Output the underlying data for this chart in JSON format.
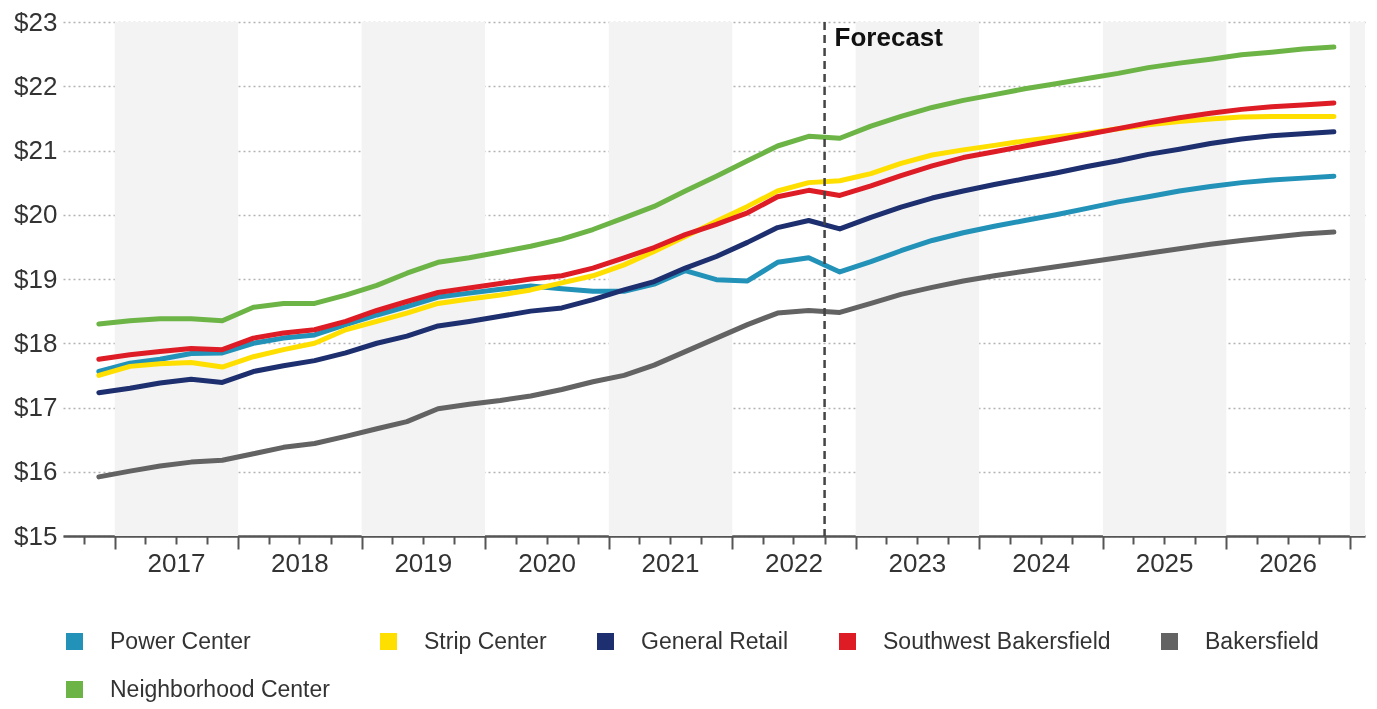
{
  "chart_data": {
    "type": "line",
    "x": [
      "2016-11-15",
      "2017-02-15",
      "2017-05-15",
      "2017-08-15",
      "2017-11-15",
      "2018-02-15",
      "2018-05-15",
      "2018-08-15",
      "2018-11-15",
      "2019-02-15",
      "2019-05-15",
      "2019-08-15",
      "2019-11-15",
      "2020-02-15",
      "2020-05-15",
      "2020-08-15",
      "2020-11-15",
      "2021-02-15",
      "2021-05-15",
      "2021-08-15",
      "2021-11-15",
      "2022-02-15",
      "2022-05-15",
      "2022-08-15",
      "2022-11-15",
      "2023-02-15",
      "2023-05-15",
      "2023-08-15",
      "2023-11-15",
      "2024-02-15",
      "2024-05-15",
      "2024-08-15",
      "2024-11-15",
      "2025-02-15",
      "2025-05-15",
      "2025-08-15",
      "2025-11-15",
      "2026-02-15",
      "2026-05-15",
      "2026-08-15",
      "2026-11-15"
    ],
    "series": [
      {
        "name": "Power Center",
        "color": "#2292b8",
        "values": [
          17.56,
          17.69,
          17.75,
          17.84,
          17.85,
          18.0,
          18.08,
          18.13,
          18.29,
          18.44,
          18.57,
          18.72,
          18.78,
          18.84,
          18.89,
          18.85,
          18.81,
          18.81,
          18.92,
          19.13,
          18.99,
          18.97,
          19.26,
          19.33,
          19.11,
          19.27,
          19.44,
          19.6,
          19.72,
          19.82,
          19.91,
          20.0,
          20.1,
          20.2,
          20.28,
          20.37,
          20.44,
          20.5,
          20.54,
          20.57,
          20.6
        ]
      },
      {
        "name": "Strip Center",
        "color": "#ffdf00",
        "values": [
          17.5,
          17.64,
          17.68,
          17.7,
          17.63,
          17.79,
          17.9,
          18.0,
          18.21,
          18.34,
          18.47,
          18.62,
          18.69,
          18.75,
          18.83,
          18.94,
          19.05,
          19.22,
          19.43,
          19.66,
          19.9,
          20.13,
          20.37,
          20.5,
          20.53,
          20.64,
          20.8,
          20.93,
          21.01,
          21.08,
          21.15,
          21.21,
          21.27,
          21.34,
          21.4,
          21.45,
          21.49,
          21.52,
          21.53,
          21.53,
          21.53
        ]
      },
      {
        "name": "General Retail",
        "color": "#1d2f6f",
        "values": [
          17.23,
          17.3,
          17.38,
          17.44,
          17.39,
          17.56,
          17.65,
          17.73,
          17.85,
          18.0,
          18.11,
          18.27,
          18.34,
          18.42,
          18.5,
          18.55,
          18.68,
          18.83,
          18.96,
          19.17,
          19.35,
          19.57,
          19.8,
          19.91,
          19.78,
          19.96,
          20.12,
          20.26,
          20.37,
          20.47,
          20.56,
          20.65,
          20.75,
          20.84,
          20.94,
          21.02,
          21.11,
          21.18,
          21.23,
          21.26,
          21.29
        ]
      },
      {
        "name": "Southwest Bakersfield",
        "color": "#dd1c25",
        "values": [
          17.75,
          17.82,
          17.87,
          17.92,
          17.9,
          18.08,
          18.16,
          18.21,
          18.34,
          18.51,
          18.65,
          18.79,
          18.86,
          18.93,
          19.0,
          19.05,
          19.17,
          19.33,
          19.49,
          19.69,
          19.85,
          20.03,
          20.28,
          20.38,
          20.3,
          20.45,
          20.61,
          20.76,
          20.89,
          20.98,
          21.07,
          21.16,
          21.25,
          21.34,
          21.43,
          21.51,
          21.58,
          21.64,
          21.68,
          21.71,
          21.74
        ]
      },
      {
        "name": "Bakersfield",
        "color": "#636363",
        "values": [
          15.92,
          16.01,
          16.09,
          16.15,
          16.18,
          16.28,
          16.38,
          16.44,
          16.55,
          16.67,
          16.78,
          16.98,
          17.05,
          17.11,
          17.18,
          17.28,
          17.4,
          17.5,
          17.66,
          17.87,
          18.08,
          18.29,
          18.47,
          18.51,
          18.48,
          18.62,
          18.76,
          18.87,
          18.97,
          19.05,
          19.12,
          19.19,
          19.26,
          19.33,
          19.4,
          19.47,
          19.54,
          19.6,
          19.65,
          19.7,
          19.73
        ]
      },
      {
        "name": "Neighborhood Center",
        "color": "#6db446",
        "values": [
          18.3,
          18.35,
          18.38,
          18.38,
          18.35,
          18.56,
          18.62,
          18.62,
          18.75,
          18.9,
          19.09,
          19.26,
          19.33,
          19.42,
          19.51,
          19.62,
          19.77,
          19.95,
          20.13,
          20.37,
          20.6,
          20.84,
          21.07,
          21.22,
          21.19,
          21.38,
          21.53,
          21.67,
          21.78,
          21.87,
          21.96,
          22.04,
          22.12,
          22.2,
          22.29,
          22.36,
          22.42,
          22.49,
          22.53,
          22.58,
          22.61
        ]
      }
    ],
    "xlim": [
      "2016-08-01",
      "2027-02-15"
    ],
    "xticks": [
      {
        "value": "2016-10-01",
        "label": null
      },
      {
        "value": "2017-01-01",
        "label": null
      },
      {
        "value": "2017-04-01",
        "label": null
      },
      {
        "value": "2017-07-01",
        "label": "2017"
      },
      {
        "value": "2017-10-01",
        "label": null
      },
      {
        "value": "2018-01-01",
        "label": null
      },
      {
        "value": "2018-04-01",
        "label": null
      },
      {
        "value": "2018-07-01",
        "label": "2018"
      },
      {
        "value": "2018-10-01",
        "label": null
      },
      {
        "value": "2019-01-01",
        "label": null
      },
      {
        "value": "2019-04-01",
        "label": null
      },
      {
        "value": "2019-07-01",
        "label": "2019"
      },
      {
        "value": "2019-10-01",
        "label": null
      },
      {
        "value": "2020-01-01",
        "label": null
      },
      {
        "value": "2020-04-01",
        "label": null
      },
      {
        "value": "2020-07-01",
        "label": "2020"
      },
      {
        "value": "2020-10-01",
        "label": null
      },
      {
        "value": "2021-01-01",
        "label": null
      },
      {
        "value": "2021-04-01",
        "label": null
      },
      {
        "value": "2021-07-01",
        "label": "2021"
      },
      {
        "value": "2021-10-01",
        "label": null
      },
      {
        "value": "2022-01-01",
        "label": null
      },
      {
        "value": "2022-04-01",
        "label": null
      },
      {
        "value": "2022-07-01",
        "label": "2022"
      },
      {
        "value": "2022-10-01",
        "label": null
      },
      {
        "value": "2023-01-01",
        "label": null
      },
      {
        "value": "2023-04-01",
        "label": null
      },
      {
        "value": "2023-07-01",
        "label": "2023"
      },
      {
        "value": "2023-10-01",
        "label": null
      },
      {
        "value": "2024-01-01",
        "label": null
      },
      {
        "value": "2024-04-01",
        "label": null
      },
      {
        "value": "2024-07-01",
        "label": "2024"
      },
      {
        "value": "2024-10-01",
        "label": null
      },
      {
        "value": "2025-01-01",
        "label": null
      },
      {
        "value": "2025-04-01",
        "label": null
      },
      {
        "value": "2025-07-01",
        "label": "2025"
      },
      {
        "value": "2025-10-01",
        "label": null
      },
      {
        "value": "2026-01-01",
        "label": null
      },
      {
        "value": "2026-04-01",
        "label": null
      },
      {
        "value": "2026-07-01",
        "label": "2026"
      },
      {
        "value": "2026-10-01",
        "label": null
      },
      {
        "value": "2027-01-01",
        "label": null
      }
    ],
    "ylim": [
      15,
      23
    ],
    "yticks": [
      {
        "value": 15,
        "label": "$15"
      },
      {
        "value": 16,
        "label": "$16"
      },
      {
        "value": 17,
        "label": "$17"
      },
      {
        "value": 18,
        "label": "$18"
      },
      {
        "value": 19,
        "label": "$19"
      },
      {
        "value": 20,
        "label": "$20"
      },
      {
        "value": 21,
        "label": "$21"
      },
      {
        "value": 22,
        "label": "$22"
      },
      {
        "value": 23,
        "label": "$23"
      }
    ],
    "grid": "y",
    "legend": "bottom",
    "line_style": "solid",
    "ref_lines": [
      {
        "axis": "x",
        "value": "2022-10-01",
        "label": "Forecast",
        "color": "#444444",
        "line_style": "dashed"
      }
    ],
    "bands": [
      {
        "axis": "x",
        "from": "2017-01-01",
        "to": "2018-01-01",
        "color": "#f3f3f3"
      },
      {
        "axis": "x",
        "from": "2019-01-01",
        "to": "2020-01-01",
        "color": "#f3f3f3"
      },
      {
        "axis": "x",
        "from": "2021-01-01",
        "to": "2022-01-01",
        "color": "#f3f3f3"
      },
      {
        "axis": "x",
        "from": "2023-01-01",
        "to": "2024-01-01",
        "color": "#f3f3f3"
      },
      {
        "axis": "x",
        "from": "2025-01-01",
        "to": "2026-01-01",
        "color": "#f3f3f3"
      },
      {
        "axis": "x",
        "from": "2027-01-01",
        "to": "2027-02-15",
        "color": "#f3f3f3"
      }
    ]
  }
}
